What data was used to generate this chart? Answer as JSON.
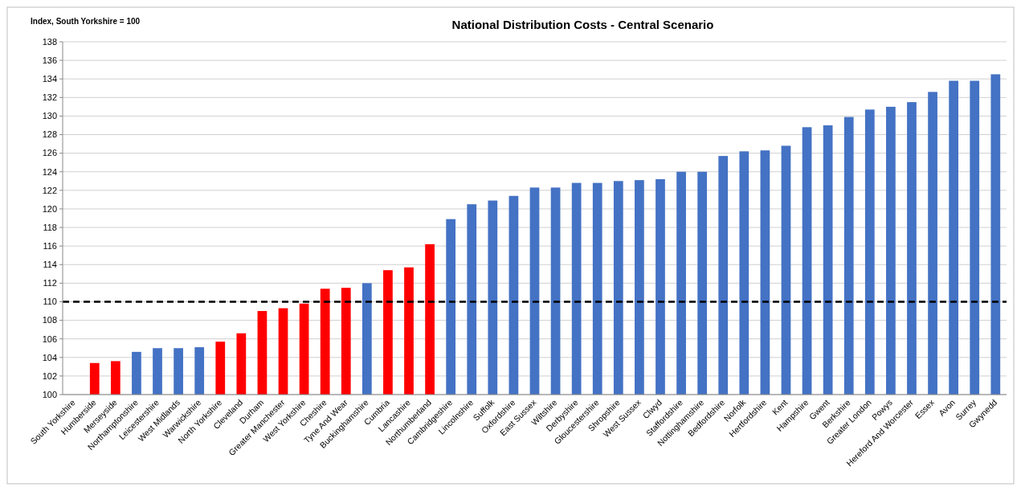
{
  "chart_data": {
    "type": "bar",
    "title": "National Distribution Costs - Central Scenario",
    "ylabel": "Index, South Yorkshire = 100",
    "categories": [
      "South Yorkshire",
      "Humberside",
      "Merseyside",
      "Northamptonshire",
      "Leicestershire",
      "West Midlands",
      "Warwickshire",
      "North Yorkshire",
      "Cleveland",
      "Durham",
      "Greater Manchester",
      "West Yorkshire",
      "Cheshire",
      "Tyne And Wear",
      "Buckinghamshire",
      "Cumbria",
      "Lancashire",
      "Northumberland",
      "Cambridgeshire",
      "Lincolnshire",
      "Suffolk",
      "Oxfordshire",
      "East Sussex",
      "Wiltshire",
      "Derbyshire",
      "Gloucestershire",
      "Shropshire",
      "West Sussex",
      "Clwyd",
      "Staffordshire",
      "Nottinghamshire",
      "Bedfordshire",
      "Norfolk",
      "Hertfordshire",
      "Kent",
      "Hampshire",
      "Gwent",
      "Berkshire",
      "Greater London",
      "Powys",
      "Hereford And Worcester",
      "Essex",
      "Avon",
      "Surrey",
      "Gwynedd"
    ],
    "values": [
      100,
      103.4,
      103.6,
      104.6,
      105.0,
      105.0,
      105.1,
      105.7,
      106.6,
      109.0,
      109.3,
      109.8,
      111.4,
      111.5,
      112.0,
      113.4,
      113.7,
      116.2,
      118.9,
      120.5,
      120.9,
      121.4,
      122.3,
      122.3,
      122.8,
      122.8,
      123.0,
      123.1,
      123.2,
      124.0,
      124.0,
      125.7,
      126.2,
      126.3,
      126.8,
      128.8,
      129.0,
      129.9,
      130.7,
      131.0,
      131.5,
      132.6,
      133.8,
      133.8,
      134.5
    ],
    "colors": [
      "#ff0000",
      "#ff0000",
      "#ff0000",
      "#4472c4",
      "#4472c4",
      "#4472c4",
      "#4472c4",
      "#ff0000",
      "#ff0000",
      "#ff0000",
      "#ff0000",
      "#ff0000",
      "#ff0000",
      "#ff0000",
      "#4472c4",
      "#ff0000",
      "#ff0000",
      "#ff0000",
      "#4472c4",
      "#4472c4",
      "#4472c4",
      "#4472c4",
      "#4472c4",
      "#4472c4",
      "#4472c4",
      "#4472c4",
      "#4472c4",
      "#4472c4",
      "#4472c4",
      "#4472c4",
      "#4472c4",
      "#4472c4",
      "#4472c4",
      "#4472c4",
      "#4472c4",
      "#4472c4",
      "#4472c4",
      "#4472c4",
      "#4472c4",
      "#4472c4",
      "#4472c4",
      "#4472c4",
      "#4472c4",
      "#4472c4",
      "#4472c4"
    ],
    "ylim": [
      100,
      138
    ],
    "yticks": [
      100,
      102,
      104,
      106,
      108,
      110,
      112,
      114,
      116,
      118,
      120,
      122,
      124,
      126,
      128,
      130,
      132,
      134,
      136,
      138
    ],
    "grid": "y",
    "ref_lines": [
      {
        "axis": "y",
        "value": 110,
        "color": "#000000",
        "line_style": "dashed"
      }
    ]
  }
}
